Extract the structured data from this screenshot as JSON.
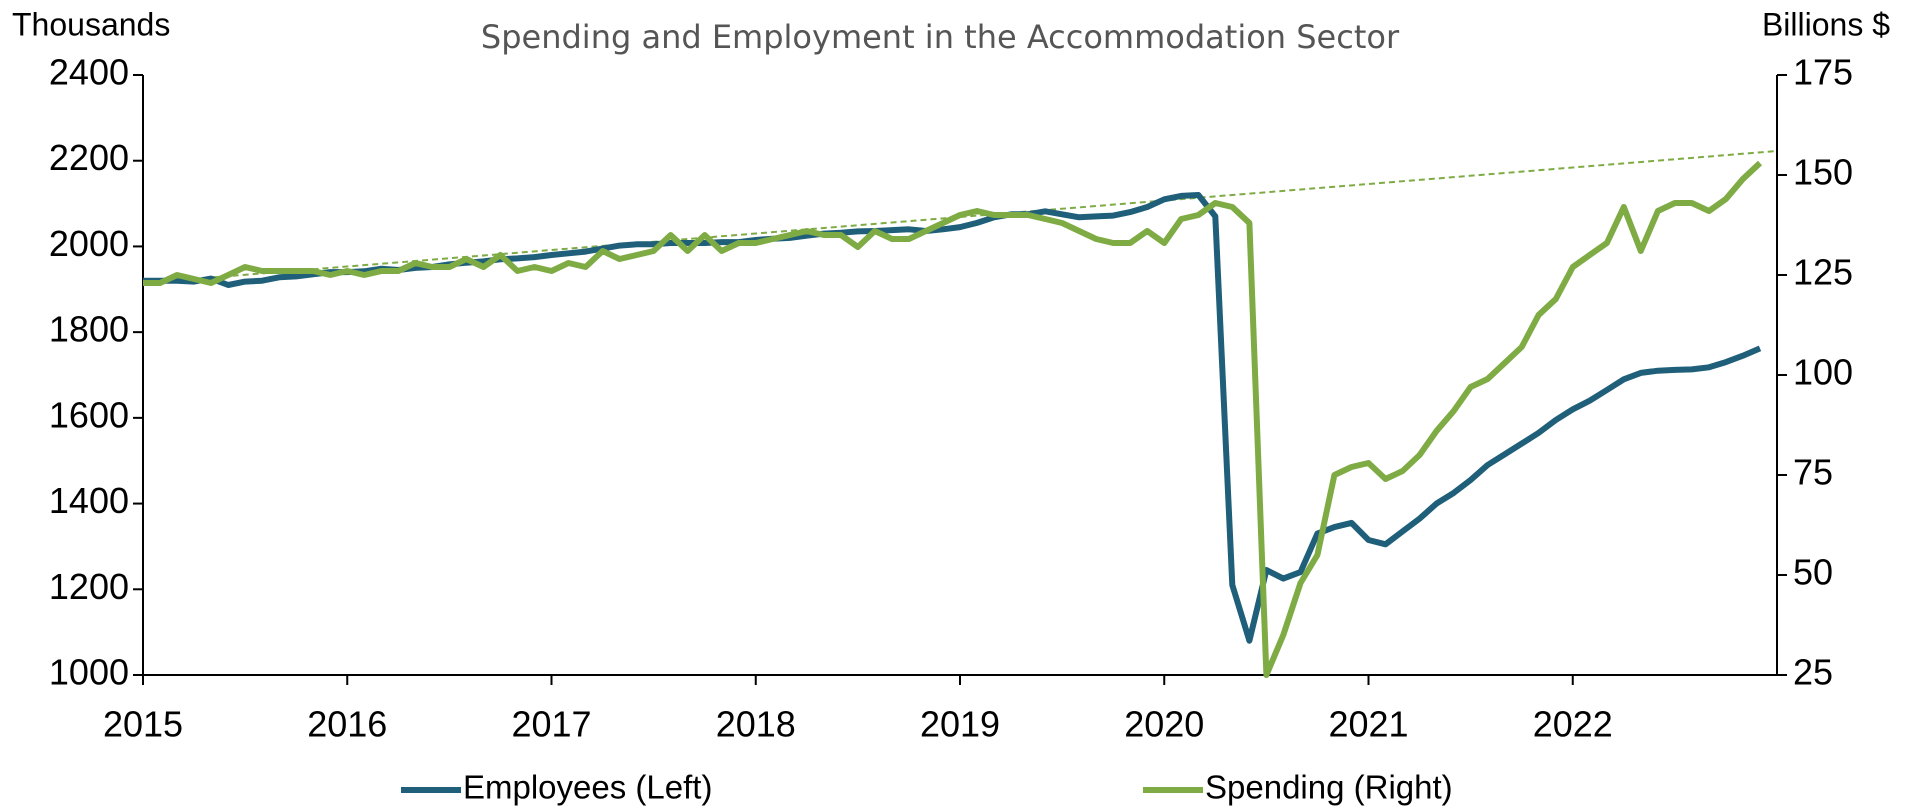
{
  "chart_data": {
    "type": "line",
    "title": "Spending and Employment in the Accommodation Sector",
    "y_label": "Thousands",
    "y2_label": "Billions $",
    "xlim": [
      2015,
      2023
    ],
    "xticks": [
      2015,
      2016,
      2017,
      2018,
      2019,
      2020,
      2021,
      2022
    ],
    "ylim": [
      1000,
      2400
    ],
    "yticks": [
      1000,
      1200,
      1400,
      1600,
      1800,
      2000,
      2200,
      2400
    ],
    "y2lim": [
      25,
      175
    ],
    "y2ticks": [
      25,
      50,
      75,
      100,
      125,
      150,
      175
    ],
    "x": [
      2015,
      2015.083,
      2015.167,
      2015.25,
      2015.333,
      2015.417,
      2015.5,
      2015.583,
      2015.667,
      2015.75,
      2015.833,
      2015.917,
      2016,
      2016.083,
      2016.167,
      2016.25,
      2016.333,
      2016.417,
      2016.5,
      2016.583,
      2016.667,
      2016.75,
      2016.833,
      2016.917,
      2017,
      2017.083,
      2017.167,
      2017.25,
      2017.333,
      2017.417,
      2017.5,
      2017.583,
      2017.667,
      2017.75,
      2017.833,
      2017.917,
      2018,
      2018.083,
      2018.167,
      2018.25,
      2018.333,
      2018.417,
      2018.5,
      2018.583,
      2018.667,
      2018.75,
      2018.833,
      2018.917,
      2019,
      2019.083,
      2019.167,
      2019.25,
      2019.333,
      2019.417,
      2019.5,
      2019.583,
      2019.667,
      2019.75,
      2019.833,
      2019.917,
      2020,
      2020.083,
      2020.167,
      2020.25,
      2020.333,
      2020.417,
      2020.5,
      2020.583,
      2020.667,
      2020.75,
      2020.833,
      2020.917,
      2021,
      2021.083,
      2021.167,
      2021.25,
      2021.333,
      2021.417,
      2021.5,
      2021.583,
      2021.667,
      2021.75,
      2021.833,
      2021.917,
      2022,
      2022.083,
      2022.167,
      2022.25,
      2022.333,
      2022.417,
      2022.5,
      2022.583,
      2022.667,
      2022.75,
      2022.833,
      2022.917
    ],
    "series": [
      {
        "name": "Employees (Left)",
        "color": "#1f5f7a",
        "axis": "y",
        "values": [
          1920,
          1920,
          1920,
          1918,
          1925,
          1910,
          1918,
          1920,
          1928,
          1930,
          1935,
          1940,
          1940,
          1942,
          1948,
          1945,
          1950,
          1952,
          1958,
          1962,
          1965,
          1970,
          1972,
          1975,
          1980,
          1984,
          1988,
          1995,
          2002,
          2005,
          2005,
          2008,
          2008,
          2008,
          2010,
          2010,
          2015,
          2018,
          2020,
          2025,
          2030,
          2032,
          2035,
          2036,
          2038,
          2040,
          2036,
          2040,
          2045,
          2055,
          2068,
          2075,
          2075,
          2082,
          2075,
          2068,
          2070,
          2072,
          2080,
          2092,
          2110,
          2118,
          2120,
          2070,
          1210,
          1080,
          1245,
          1225,
          1240,
          1330,
          1345,
          1355,
          1315,
          1305,
          1335,
          1365,
          1400,
          1425,
          1455,
          1490,
          1515,
          1540,
          1565,
          1595,
          1620,
          1640,
          1665,
          1690,
          1705,
          1710,
          1712,
          1713,
          1718,
          1730,
          1745,
          1762
        ]
      },
      {
        "name": "Spending (Right)",
        "color": "#7fab45",
        "axis": "y2",
        "values": [
          123,
          123,
          125,
          124,
          123,
          125,
          127,
          126,
          126,
          126,
          126,
          125,
          126,
          125,
          126,
          126,
          128,
          127,
          127,
          129,
          127,
          130,
          126,
          127,
          126,
          128,
          127,
          131,
          129,
          130,
          131,
          135,
          131,
          135,
          131,
          133,
          133,
          134,
          135,
          136,
          135,
          135,
          132,
          136,
          134,
          134,
          136,
          138,
          140,
          141,
          140,
          140,
          140,
          139,
          138,
          136,
          134,
          133,
          133,
          136,
          133,
          139,
          140,
          143,
          142,
          138,
          25,
          35,
          48,
          55,
          75,
          77,
          78,
          74,
          76,
          80,
          86,
          91,
          97,
          99,
          103,
          107,
          115,
          119,
          127,
          130,
          133,
          142,
          131,
          141,
          143,
          143,
          141,
          144,
          149,
          153
        ]
      }
    ],
    "trend_line": {
      "x": [
        2015,
        2023
      ],
      "values": [
        123,
        156
      ],
      "color": "#7fab45",
      "axis": "y2"
    }
  }
}
